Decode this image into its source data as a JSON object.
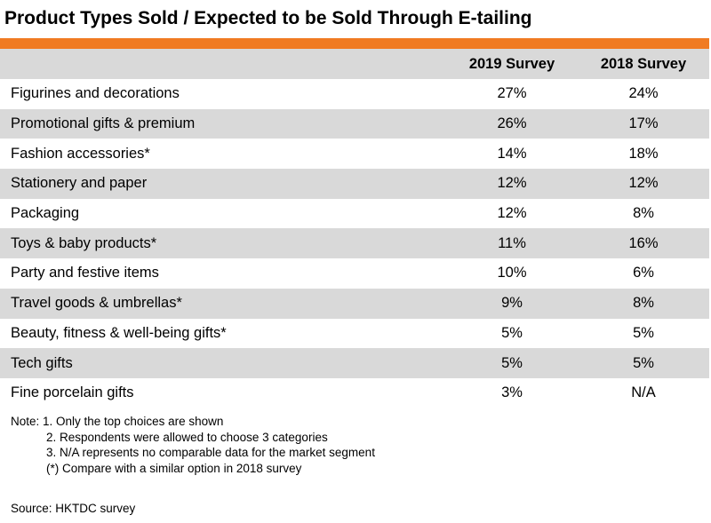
{
  "title": "Product Types Sold / Expected to be Sold Through E-tailing",
  "colors": {
    "accent": "#f07b22",
    "row_shade": "#d9d9d9"
  },
  "chart_data": {
    "type": "table",
    "title": "Product Types Sold / Expected to be Sold Through E-tailing",
    "columns": [
      "",
      "2019 Survey",
      "2018 Survey"
    ],
    "rows": [
      {
        "label": "Figurines and decorations",
        "v2019": "27%",
        "v2018": "24%"
      },
      {
        "label": "Promotional gifts & premium",
        "v2019": "26%",
        "v2018": "17%"
      },
      {
        "label": "Fashion accessories*",
        "v2019": "14%",
        "v2018": "18%"
      },
      {
        "label": "Stationery and paper",
        "v2019": "12%",
        "v2018": "12%"
      },
      {
        "label": "Packaging",
        "v2019": "12%",
        "v2018": "8%"
      },
      {
        "label": "Toys & baby products*",
        "v2019": "11%",
        "v2018": "16%"
      },
      {
        "label": "Party and festive items",
        "v2019": "10%",
        "v2018": "6%"
      },
      {
        "label": "Travel goods & umbrellas*",
        "v2019": "9%",
        "v2018": "8%"
      },
      {
        "label": "Beauty, fitness & well-being gifts*",
        "v2019": "5%",
        "v2018": "5%"
      },
      {
        "label": "Tech gifts",
        "v2019": "5%",
        "v2018": "5%"
      },
      {
        "label": "Fine porcelain gifts",
        "v2019": "3%",
        "v2018": "N/A"
      }
    ]
  },
  "notes": [
    "Note: 1. Only the top choices are shown",
    "2. Respondents were allowed to choose 3 categories",
    "3. N/A represents no comparable data for the market segment",
    "(*) Compare with a similar option in 2018 survey"
  ],
  "source": "Source: HKTDC survey"
}
